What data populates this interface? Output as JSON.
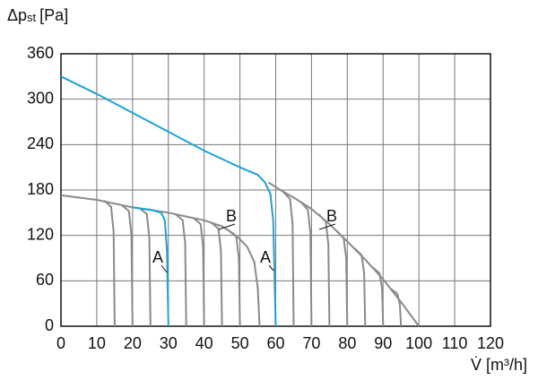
{
  "chart_data": {
    "type": "line",
    "y_label": {
      "symbol": "Δp",
      "subscript": "st",
      "unit": "[Pa]"
    },
    "x_label": "V̇ [m³/h]",
    "xlim": [
      0,
      120
    ],
    "xticks": [
      0,
      10,
      20,
      30,
      40,
      50,
      60,
      70,
      80,
      90,
      100,
      110,
      120
    ],
    "ylim": [
      0,
      360
    ],
    "yticks": [
      0,
      60,
      120,
      180,
      240,
      300,
      360
    ],
    "grid": true,
    "annotations": [
      "A",
      "A",
      "B",
      "B"
    ],
    "series": [
      {
        "color": "#8a8a8a",
        "x": [
          0,
          10,
          20,
          30,
          35,
          40,
          45,
          48,
          50,
          52,
          54,
          55,
          55.5
        ],
        "values": [
          173,
          167,
          157,
          150,
          145,
          140,
          132,
          123,
          115,
          105,
          85,
          50,
          0
        ]
      },
      {
        "color": "#8a8a8a",
        "x": [
          58,
          62,
          65,
          70,
          75,
          80,
          85,
          90,
          95,
          100
        ],
        "values": [
          190,
          178,
          170,
          155,
          135,
          112,
          88,
          62,
          32,
          0
        ]
      },
      {
        "color": "#8a8a8a",
        "x": [
          12,
          14,
          14.7,
          15
        ],
        "values": [
          166,
          158,
          125,
          0
        ]
      },
      {
        "color": "#8a8a8a",
        "x": [
          17,
          19,
          19.7,
          20
        ],
        "values": [
          160,
          152,
          120,
          0
        ]
      },
      {
        "color": "#8a8a8a",
        "x": [
          22,
          24,
          24.7,
          25
        ],
        "values": [
          156,
          148,
          116,
          0
        ]
      },
      {
        "color": "#8a8a8a",
        "x": [
          32,
          34,
          34.7,
          35
        ],
        "values": [
          148,
          140,
          110,
          0
        ]
      },
      {
        "color": "#8a8a8a",
        "x": [
          37,
          39,
          39.7,
          40
        ],
        "values": [
          143,
          135,
          105,
          0
        ]
      },
      {
        "color": "#8a8a8a",
        "x": [
          42,
          44,
          44.7,
          45
        ],
        "values": [
          137,
          129,
          100,
          0
        ]
      },
      {
        "color": "#8a8a8a",
        "x": [
          47,
          49,
          49.7,
          50
        ],
        "values": [
          126,
          118,
          90,
          0
        ]
      },
      {
        "color": "#8a8a8a",
        "x": [
          62,
          64,
          64.7,
          65
        ],
        "values": [
          178,
          168,
          135,
          0
        ]
      },
      {
        "color": "#8a8a8a",
        "x": [
          67,
          69,
          69.7,
          70
        ],
        "values": [
          164,
          154,
          122,
          0
        ]
      },
      {
        "color": "#8a8a8a",
        "x": [
          72,
          74,
          74.7,
          75
        ],
        "values": [
          148,
          138,
          108,
          0
        ]
      },
      {
        "color": "#8a8a8a",
        "x": [
          77,
          79,
          79.7,
          80
        ],
        "values": [
          126,
          116,
          90,
          0
        ]
      },
      {
        "color": "#8a8a8a",
        "x": [
          82,
          84,
          84.7,
          85
        ],
        "values": [
          103,
          94,
          70,
          0
        ]
      },
      {
        "color": "#8a8a8a",
        "x": [
          87,
          89,
          89.7,
          90
        ],
        "values": [
          78,
          70,
          50,
          0
        ]
      },
      {
        "color": "#8a8a8a",
        "x": [
          92,
          94,
          94.7,
          95
        ],
        "values": [
          50,
          43,
          28,
          0
        ]
      },
      {
        "color": "#1aa3dc",
        "x": [
          20,
          25,
          28,
          29,
          29.6,
          30
        ],
        "values": [
          157,
          154,
          150,
          140,
          100,
          0
        ]
      },
      {
        "color": "#1aa3dc",
        "x": [
          0,
          10,
          20,
          30,
          40,
          50,
          55,
          57,
          58.5,
          59.3,
          59.7,
          60
        ],
        "values": [
          330,
          307,
          282,
          257,
          232,
          210,
          200,
          190,
          175,
          140,
          60,
          0
        ]
      }
    ]
  }
}
